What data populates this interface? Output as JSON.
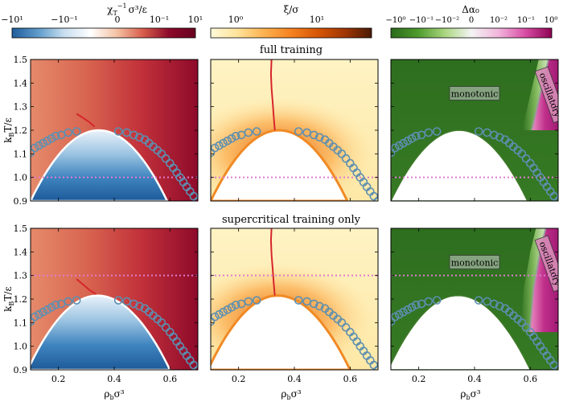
{
  "figure": {
    "row_titles": [
      "full training",
      "supercritical training only"
    ]
  },
  "colorbars": [
    {
      "label": "χ_T^{-1} σ³/ε",
      "label_main": "χ",
      "label_sub": "T",
      "label_sup": "−1",
      "label_rest": "σ³/ε",
      "ticks": [
        "−10¹",
        "−10⁻¹",
        "0",
        "10⁻¹",
        "10¹"
      ],
      "colors": [
        "#1f5d9c",
        "#5f9ccb",
        "#c9dff0",
        "#ffffff",
        "#f4c2a4",
        "#d85c4b",
        "#8c0a2a",
        "#67001f"
      ]
    },
    {
      "label": "ξ/σ",
      "ticks": [
        "10⁰",
        "10¹"
      ],
      "colors": [
        "#fffbd9",
        "#fee39a",
        "#fdb14f",
        "#f5821f",
        "#d65606",
        "#a13603",
        "#4a1a04"
      ]
    },
    {
      "label": "Δα₀",
      "ticks": [
        "−10⁰",
        "−10⁻¹",
        "−10⁻²",
        "0",
        "10⁻²",
        "10⁻¹",
        "10⁰"
      ],
      "colors": [
        "#2a6a1b",
        "#4d9a2c",
        "#a9d67e",
        "#f4f4f4",
        "#f2b6dc",
        "#d94fa6",
        "#8e0152"
      ]
    }
  ],
  "axes": {
    "xlabel": "ρ_bσ³",
    "xlabel_main": "ρ",
    "xlabel_sub": "b",
    "xlabel_rest": "σ³",
    "ylabel": "k_BT/ε",
    "ylabel_k": "k",
    "ylabel_sub": "B",
    "ylabel_rest": "T/ε",
    "xticks": [
      "0.2",
      "0.4",
      "0.6"
    ],
    "yticks": [
      "0.9",
      "1.0",
      "1.1",
      "1.2",
      "1.3",
      "1.4",
      "1.5"
    ]
  },
  "annotations": {
    "monotonic": "monotonic",
    "oscillatory": "oscillatory"
  },
  "chart_data": {
    "type": "heatmap",
    "xlim": [
      0.1,
      0.7
    ],
    "ylim": [
      0.9,
      1.5
    ],
    "xticks": [
      0.2,
      0.4,
      0.6
    ],
    "yticks": [
      0.9,
      1.0,
      1.1,
      1.2,
      1.3,
      1.4,
      1.5
    ],
    "binodal_markers": {
      "x": [
        0.1,
        0.115,
        0.13,
        0.145,
        0.16,
        0.175,
        0.19,
        0.21,
        0.235,
        0.265,
        0.415,
        0.445,
        0.47,
        0.49,
        0.51,
        0.525,
        0.54,
        0.555,
        0.57,
        0.585,
        0.6,
        0.612,
        0.624,
        0.636,
        0.648,
        0.66,
        0.672,
        0.685,
        0.7
      ],
      "y": [
        1.105,
        1.125,
        1.135,
        1.145,
        1.155,
        1.165,
        1.175,
        1.18,
        1.19,
        1.195,
        1.195,
        1.19,
        1.18,
        1.17,
        1.16,
        1.145,
        1.13,
        1.115,
        1.1,
        1.08,
        1.06,
        1.04,
        1.02,
        1.0,
        0.98,
        0.96,
        0.94,
        0.92,
        0.9
      ]
    },
    "rows": [
      {
        "title": "full training",
        "reference_temperature": 1.0,
        "spinodal_peak": {
          "x": 0.345,
          "y": 1.2
        },
        "spinodal_extent": [
          0.1,
          0.59
        ],
        "widom_line_x": [
          0.33,
          0.326,
          0.322,
          0.318,
          0.316,
          0.318
        ],
        "widom_line_y": [
          1.2,
          1.26,
          1.32,
          1.38,
          1.44,
          1.5
        ],
        "kirkwood_line_x": [
          0.665,
          0.655,
          0.645,
          0.635,
          0.625,
          0.615,
          0.605
        ],
        "kirkwood_line_y": [
          1.5,
          1.45,
          1.4,
          1.35,
          1.3,
          1.25,
          1.2
        ],
        "chi_segment_x": [
          0.265,
          0.285,
          0.31,
          0.33
        ],
        "chi_segment_y": [
          1.27,
          1.255,
          1.235,
          1.215
        ]
      },
      {
        "title": "supercritical training only",
        "reference_temperature": 1.3,
        "spinodal_peak": {
          "x": 0.34,
          "y": 1.215
        },
        "spinodal_extent": [
          0.09,
          0.6
        ],
        "widom_line_x": [
          0.33,
          0.326,
          0.322,
          0.318,
          0.316,
          0.318
        ],
        "widom_line_y": [
          1.215,
          1.27,
          1.33,
          1.39,
          1.45,
          1.5
        ],
        "kirkwood_line_x": [
          0.655,
          0.645,
          0.635,
          0.628,
          0.62,
          0.612,
          0.605,
          0.598
        ],
        "kirkwood_line_y": [
          1.5,
          1.45,
          1.4,
          1.35,
          1.3,
          1.25,
          1.15,
          1.06
        ],
        "chi_segment_x": [
          0.265,
          0.285,
          0.31,
          0.335
        ],
        "chi_segment_y": [
          1.285,
          1.265,
          1.24,
          1.22
        ]
      }
    ]
  }
}
